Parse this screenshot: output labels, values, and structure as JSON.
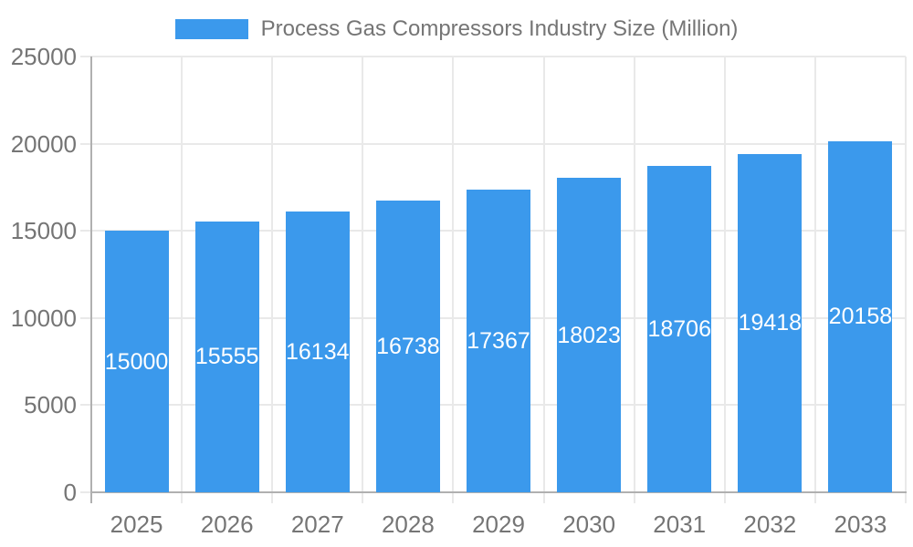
{
  "chart_data": {
    "type": "bar",
    "title": "Process Gas Compressors Industry Size (Million)",
    "categories": [
      "2025",
      "2026",
      "2027",
      "2028",
      "2029",
      "2030",
      "2031",
      "2032",
      "2033"
    ],
    "values": [
      15000,
      15555,
      16134,
      16738,
      17367,
      18023,
      18706,
      19418,
      20158
    ],
    "xlabel": "",
    "ylabel": "",
    "ylim": [
      0,
      25000
    ],
    "y_ticks": [
      0,
      5000,
      10000,
      15000,
      20000,
      25000
    ],
    "y_tick_labels": [
      "0",
      "5000",
      "10000",
      "15000",
      "20000",
      "25000"
    ],
    "legend_position": "top",
    "grid": true,
    "bar_color": "#3b99ec",
    "bar_label_color": "#ffffff",
    "axis_text_color": "#757575",
    "grid_color": "#e9e9e9",
    "axis_line_color": "#b0b0b0"
  }
}
